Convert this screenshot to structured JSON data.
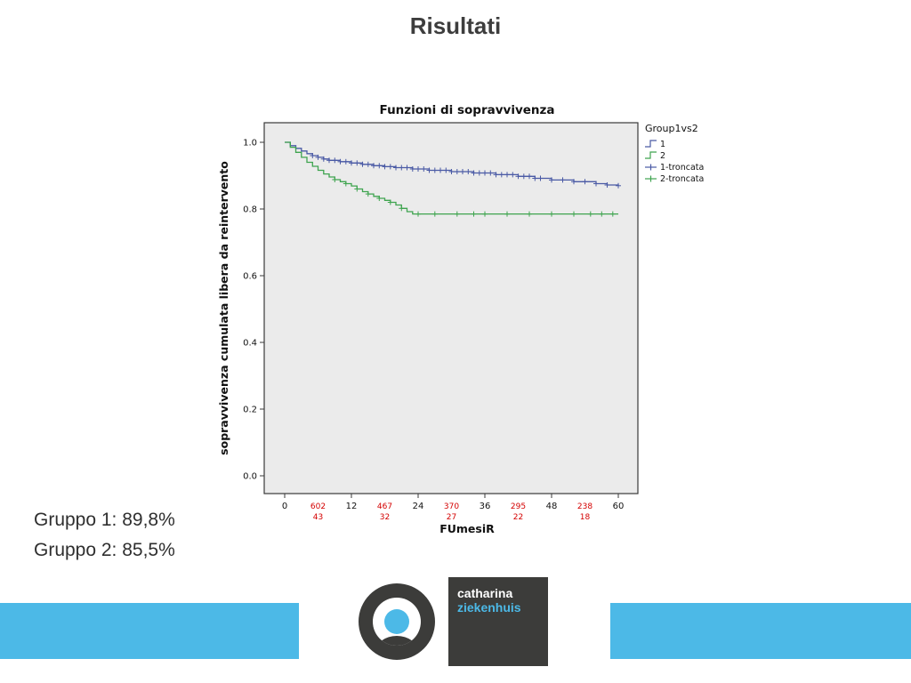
{
  "slide": {
    "title": "Risultati",
    "results": {
      "group1": "Gruppo 1: 89,8%",
      "group2": "Gruppo 2: 85,5%"
    },
    "logo": {
      "line1": "catharina",
      "line2": "ziekenhuis"
    },
    "accent_bar_color": "#4cb9e7"
  },
  "chart_data": {
    "type": "line",
    "subtype": "kaplan-meier-step",
    "title": "Funzioni di sopravvivenza",
    "xlabel": "FUmesiR",
    "ylabel": "sopravvivenza cumulata libera da reintervento",
    "xlim": [
      0,
      60
    ],
    "ylim": [
      0.0,
      1.0
    ],
    "xticks": [
      0,
      12,
      24,
      36,
      48,
      60
    ],
    "ytick_labels": [
      "0.0",
      "0.2",
      "0.4",
      "0.6",
      "0.8",
      "1.0"
    ],
    "plot_bg": "#ebebeb",
    "grid": false,
    "legend": {
      "title": "Group1vs2",
      "position": "right",
      "entries": [
        {
          "label": "1",
          "color": "#4a5aa5",
          "glyph": "step"
        },
        {
          "label": "2",
          "color": "#3fa44f",
          "glyph": "step"
        },
        {
          "label": "1-troncata",
          "color": "#4a5aa5",
          "glyph": "censor"
        },
        {
          "label": "2-troncata",
          "color": "#3fa44f",
          "glyph": "censor"
        }
      ]
    },
    "at_risk_labels": {
      "color": "#d40000",
      "items": [
        {
          "x": 6,
          "line1": "602",
          "line2": "43"
        },
        {
          "x": 18,
          "line1": "467",
          "line2": "32"
        },
        {
          "x": 30,
          "line1": "370",
          "line2": "27"
        },
        {
          "x": 42,
          "line1": "295",
          "line2": "22"
        },
        {
          "x": 54,
          "line1": "238",
          "line2": "18"
        }
      ]
    },
    "series": [
      {
        "name": "1",
        "color": "#4a5aa5",
        "steps": [
          [
            0,
            1.0
          ],
          [
            1,
            0.99
          ],
          [
            2,
            0.982
          ],
          [
            3,
            0.974
          ],
          [
            4,
            0.966
          ],
          [
            5,
            0.96
          ],
          [
            6,
            0.955
          ],
          [
            7,
            0.95
          ],
          [
            8,
            0.946
          ],
          [
            10,
            0.942
          ],
          [
            12,
            0.938
          ],
          [
            14,
            0.934
          ],
          [
            16,
            0.93
          ],
          [
            18,
            0.927
          ],
          [
            20,
            0.924
          ],
          [
            23,
            0.92
          ],
          [
            26,
            0.916
          ],
          [
            30,
            0.912
          ],
          [
            34,
            0.908
          ],
          [
            38,
            0.903
          ],
          [
            42,
            0.898
          ],
          [
            45,
            0.892
          ],
          [
            48,
            0.887
          ],
          [
            52,
            0.882
          ],
          [
            56,
            0.876
          ],
          [
            58,
            0.872
          ],
          [
            60,
            0.87
          ]
        ],
        "censors": [
          5,
          6,
          7,
          8,
          9,
          10,
          11,
          12,
          13,
          14,
          15,
          16,
          17,
          18,
          19,
          20,
          21,
          22,
          23,
          24,
          25,
          26,
          27,
          28,
          29,
          30,
          31,
          32,
          33,
          34,
          35,
          36,
          37,
          38,
          39,
          40,
          41,
          42,
          43,
          44,
          45,
          46,
          48,
          50,
          52,
          54,
          56,
          58,
          60
        ]
      },
      {
        "name": "2",
        "color": "#3fa44f",
        "steps": [
          [
            0,
            1.0
          ],
          [
            1,
            0.985
          ],
          [
            2,
            0.97
          ],
          [
            3,
            0.955
          ],
          [
            4,
            0.94
          ],
          [
            5,
            0.928
          ],
          [
            6,
            0.916
          ],
          [
            7,
            0.905
          ],
          [
            8,
            0.896
          ],
          [
            9,
            0.888
          ],
          [
            10,
            0.882
          ],
          [
            11,
            0.876
          ],
          [
            12,
            0.869
          ],
          [
            13,
            0.86
          ],
          [
            14,
            0.852
          ],
          [
            15,
            0.845
          ],
          [
            16,
            0.838
          ],
          [
            17,
            0.832
          ],
          [
            18,
            0.826
          ],
          [
            19,
            0.82
          ],
          [
            20,
            0.812
          ],
          [
            21,
            0.802
          ],
          [
            22,
            0.792
          ],
          [
            23,
            0.785
          ],
          [
            60,
            0.785
          ]
        ],
        "censors": [
          9,
          11,
          13,
          15,
          17,
          19,
          21,
          24,
          27,
          31,
          34,
          36,
          40,
          44,
          48,
          52,
          55,
          57,
          59
        ]
      }
    ]
  }
}
